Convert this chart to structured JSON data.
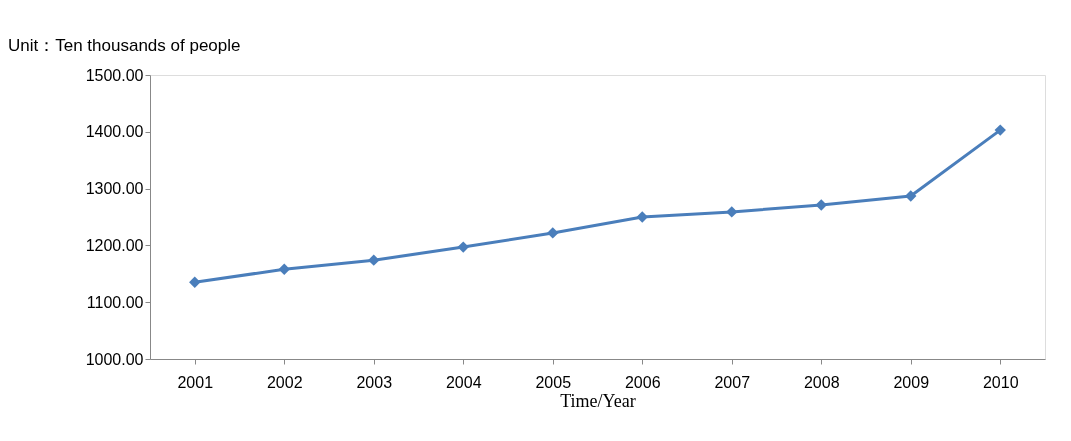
{
  "chart_data": {
    "type": "line",
    "title": "Unit：Ten thousands of people",
    "xlabel": "Time/Year",
    "categories": [
      "2001",
      "2002",
      "2003",
      "2004",
      "2005",
      "2006",
      "2007",
      "2008",
      "2009",
      "2010"
    ],
    "series": [
      {
        "color": "#4a7ebb",
        "values": [
          1135,
          1158,
          1174,
          1197,
          1222,
          1250,
          1259,
          1271,
          1287,
          1403
        ]
      }
    ],
    "ylim": [
      1000,
      1500
    ],
    "yticks": [
      {
        "value": 1000,
        "label": "1000.00"
      },
      {
        "value": 1100,
        "label": "1100.00"
      },
      {
        "value": 1200,
        "label": "1200.00"
      },
      {
        "value": 1300,
        "label": "1300.00"
      },
      {
        "value": 1400,
        "label": "1400.00"
      },
      {
        "value": 1500,
        "label": "1500.00"
      }
    ],
    "grid": false,
    "legend": false,
    "marker": "diamond",
    "line_style": "solid"
  }
}
